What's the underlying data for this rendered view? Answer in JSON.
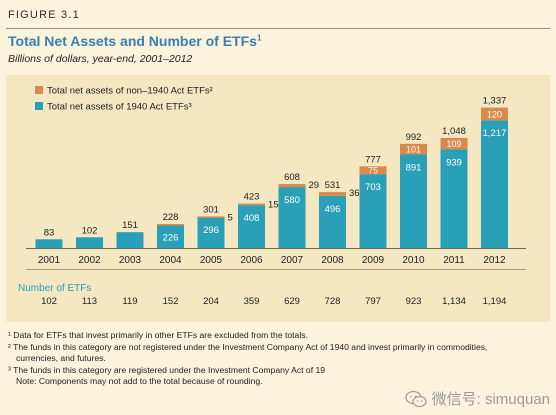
{
  "figure": {
    "label": "FIGURE 3.1",
    "title": "Total Net Assets and Number of ETFs",
    "title_note": "1",
    "subtitle": "Billions of dollars, year-end, 2001–2012"
  },
  "colors": {
    "non1940": "#d98a4a",
    "act1940": "#2a9fb8",
    "title": "#3a7fb2",
    "count_label": "#2a9fb8"
  },
  "chart_data": {
    "type": "bar",
    "stacked": true,
    "categories": [
      "2001",
      "2002",
      "2003",
      "2004",
      "2005",
      "2006",
      "2007",
      "2008",
      "2009",
      "2010",
      "2011",
      "2012"
    ],
    "series": [
      {
        "name": "Total net assets of 1940 Act ETFs³",
        "values": [
          83,
          102,
          151,
          226,
          296,
          408,
          580,
          496,
          703,
          891,
          939,
          1217
        ]
      },
      {
        "name": "Total net assets of non–1940 Act ETFs²",
        "values": [
          0,
          0,
          0,
          2,
          5,
          15,
          29,
          36,
          75,
          101,
          109,
          120
        ]
      }
    ],
    "totals": [
      83,
      102,
      151,
      228,
      301,
      423,
      608,
      531,
      777,
      992,
      1048,
      1337
    ],
    "inner_labels_1940": [
      "",
      "",
      "",
      "226",
      "296",
      "408",
      "580",
      "496",
      "703",
      "891",
      "939",
      "1,217"
    ],
    "inner_labels_non1940": [
      "",
      "",
      "",
      "",
      "",
      "",
      "",
      "",
      "75",
      "101",
      "109",
      "120"
    ],
    "side_labels_non1940": [
      "",
      "",
      "",
      "",
      "5",
      "15",
      "29",
      "36",
      "",
      "",
      "",
      ""
    ],
    "total_labels": [
      "83",
      "102",
      "151",
      "228",
      "301",
      "423",
      "608",
      "531",
      "777",
      "992",
      "1,048",
      "1,337"
    ],
    "ylim": [
      0,
      1400
    ],
    "legend_position": "top-left",
    "grid": false
  },
  "number_of_etfs": {
    "label": "Number of ETFs",
    "values": [
      "102",
      "113",
      "119",
      "152",
      "204",
      "359",
      "629",
      "728",
      "797",
      "923",
      "1,134",
      "1,194"
    ]
  },
  "notes": {
    "n1": "¹ Data for ETFs that invest primarily in other ETFs are excluded from the totals.",
    "n2a": "² The funds in this category are not registered under the Investment Company Act of 1940 and invest primarily in commodities,",
    "n2b": "currencies, and futures.",
    "n3": "³ The funds in this category are registered under the Investment Company Act of 19",
    "n4": "Note: Components may not add to the total because of rounding."
  },
  "watermark": {
    "text": "微信号: simuquan",
    "icon": "wechat-icon"
  }
}
